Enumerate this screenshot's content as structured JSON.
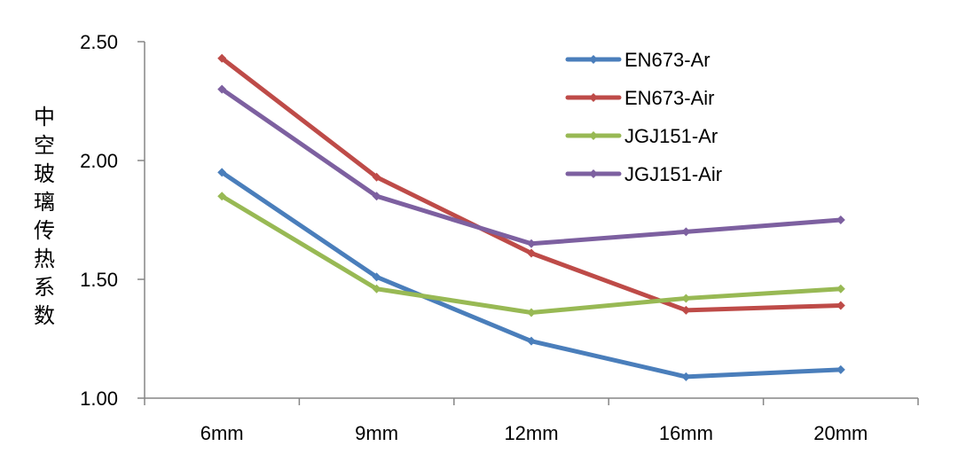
{
  "chart_data": {
    "type": "line",
    "title": "",
    "xlabel": "",
    "ylabel": "中空玻璃传热系数",
    "categories": [
      "6mm",
      "9mm",
      "12mm",
      "16mm",
      "20mm"
    ],
    "ylim": [
      1.0,
      2.5
    ],
    "yticks": [
      1.0,
      1.5,
      2.0,
      2.5
    ],
    "ytick_labels": [
      "1.00",
      "1.50",
      "2.00",
      "2.50"
    ],
    "grid": false,
    "legend_position": "top-right",
    "series": [
      {
        "name": "EN673-Ar",
        "color": "#4a7ebb",
        "values": [
          1.95,
          1.51,
          1.24,
          1.09,
          1.12
        ]
      },
      {
        "name": "EN673-Air",
        "color": "#be4b48",
        "values": [
          2.43,
          1.93,
          1.61,
          1.37,
          1.39
        ]
      },
      {
        "name": "JGJ151-Ar",
        "color": "#98b954",
        "values": [
          1.85,
          1.46,
          1.36,
          1.42,
          1.46
        ]
      },
      {
        "name": "JGJ151-Air",
        "color": "#7d60a0",
        "values": [
          2.3,
          1.85,
          1.65,
          1.7,
          1.75
        ]
      }
    ]
  }
}
